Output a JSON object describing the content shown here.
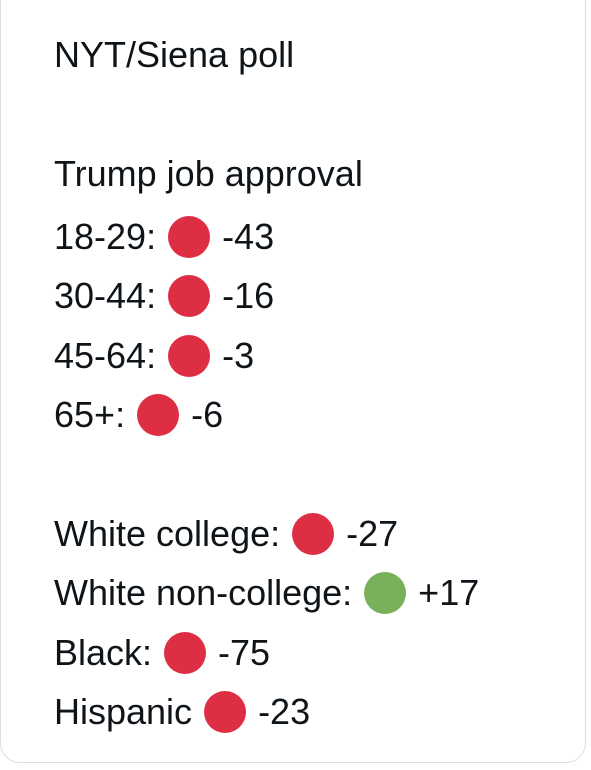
{
  "post": {
    "title": "NYT/Siena poll",
    "section_heading": "Trump job approval",
    "age_groups": [
      {
        "label": "18-29:",
        "value": "-43",
        "indicator": "red-circle"
      },
      {
        "label": "30-44:",
        "value": "-16",
        "indicator": "red-circle"
      },
      {
        "label": "45-64:",
        "value": "-3",
        "indicator": "red-circle"
      },
      {
        "label": "65+:",
        "value": "-6",
        "indicator": "red-circle"
      }
    ],
    "demographics": [
      {
        "label": "White college:",
        "value": "-27",
        "indicator": "red-circle"
      },
      {
        "label": "White non-college:",
        "value": "+17",
        "indicator": "green-circle"
      },
      {
        "label": "Black:",
        "value": "-75",
        "indicator": "red-circle"
      },
      {
        "label": "Hispanic",
        "value": "-23",
        "indicator": "red-circle"
      }
    ]
  },
  "colors": {
    "red_circle": "#dd2e44",
    "green_circle": "#78b159",
    "text": "#0f1419",
    "card_border": "#d8dee3"
  }
}
